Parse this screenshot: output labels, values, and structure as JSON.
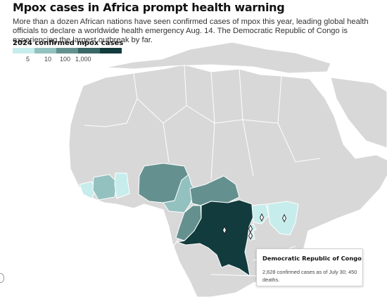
{
  "header": {
    "title": "Mpox cases in Africa prompt health warning",
    "dek": "More than a dozen African nations have seen confirmed cases of mpox this year, leading global health officials to declare a worldwide health emergency Aug. 14. The Democratic Republic of Congo is experiencing the largest outbreak by far."
  },
  "legend": {
    "title": "2024 confirmed mpox cases",
    "colors": [
      "#c7ecec",
      "#93c1c0",
      "#64918f",
      "#3a6767",
      "#123b3d"
    ],
    "ticks": [
      "5",
      "10",
      "100",
      "1,000"
    ]
  },
  "map": {
    "colors": {
      "ocean": "#ffffff",
      "land": "#d8d8d8",
      "border": "#ffffff",
      "bin1": "#c7ecec",
      "bin2": "#93c1c0",
      "bin3": "#64918f",
      "bin4": "#3a6767",
      "bin5": "#123b3d"
    },
    "highlighted_country": "Democratic Republic of Congo"
  },
  "tooltip": {
    "title": "Democratic Republic of Congo",
    "body": "2,628 confirmed cases as of July 30; 450 deaths."
  }
}
